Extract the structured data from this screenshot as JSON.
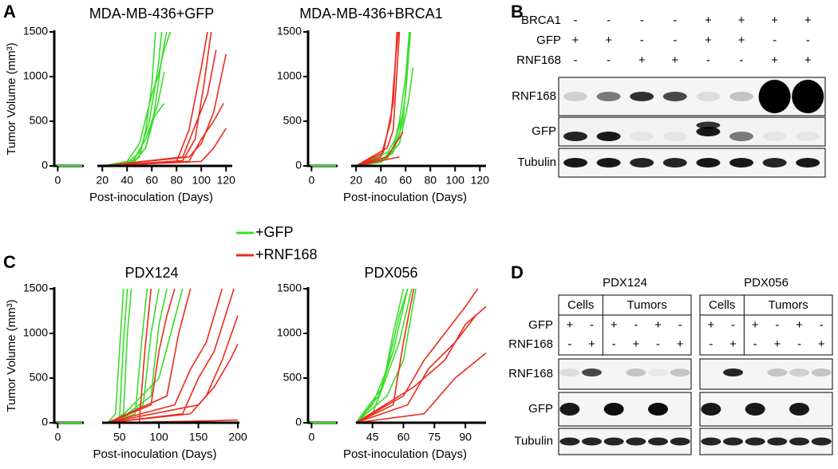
{
  "panel_labels": [
    "A",
    "B",
    "C",
    "D"
  ],
  "legend": [
    {
      "name": "+GFP",
      "color": "#3bdc2a"
    },
    {
      "name": "+RNF168",
      "color": "#ec2a1c"
    }
  ],
  "chart_data": [
    {
      "type": "line",
      "title": "MDA-MB-436+GFP",
      "xlabel": "Post-inoculation (Days)",
      "ylabel": "Tumor Volume (mm³)",
      "xlim": [
        -2,
        125
      ],
      "xbreak": [
        15,
        16
      ],
      "xticks": [
        0,
        20,
        40,
        60,
        80,
        100,
        120
      ],
      "ylim": [
        0,
        1500
      ],
      "yticks": [
        0,
        500,
        1000,
        1500
      ],
      "series": [
        {
          "color": "#3bdc2a",
          "x": [
            20,
            40,
            50,
            55,
            60,
            63
          ],
          "values": [
            0,
            20,
            100,
            400,
            900,
            1500
          ]
        },
        {
          "color": "#3bdc2a",
          "x": [
            20,
            40,
            50,
            58,
            65,
            68
          ],
          "values": [
            0,
            30,
            150,
            500,
            1100,
            1500
          ]
        },
        {
          "color": "#3bdc2a",
          "x": [
            20,
            45,
            55,
            62,
            68,
            72
          ],
          "values": [
            0,
            40,
            200,
            600,
            1200,
            1500
          ]
        },
        {
          "color": "#3bdc2a",
          "x": [
            20,
            40,
            50,
            60,
            65,
            70,
            75
          ],
          "values": [
            0,
            50,
            250,
            800,
            1000,
            1300,
            1500
          ]
        },
        {
          "color": "#3bdc2a",
          "x": [
            20,
            45,
            55,
            65,
            70
          ],
          "values": [
            0,
            60,
            300,
            700,
            1050
          ]
        },
        {
          "color": "#3bdc2a",
          "x": [
            20,
            45,
            55,
            62,
            70
          ],
          "values": [
            0,
            30,
            200,
            550,
            700
          ]
        },
        {
          "color": "#ec2a1c",
          "x": [
            20,
            80,
            90,
            100,
            105
          ],
          "values": [
            0,
            50,
            400,
            1100,
            1500
          ]
        },
        {
          "color": "#ec2a1c",
          "x": [
            20,
            85,
            95,
            102,
            108
          ],
          "values": [
            0,
            60,
            300,
            900,
            1500
          ]
        },
        {
          "color": "#ec2a1c",
          "x": [
            20,
            85,
            95,
            105,
            112
          ],
          "values": [
            0,
            100,
            450,
            800,
            1300
          ]
        },
        {
          "color": "#ec2a1c",
          "x": [
            20,
            90,
            100,
            110,
            120
          ],
          "values": [
            0,
            100,
            250,
            600,
            1250
          ]
        },
        {
          "color": "#ec2a1c",
          "x": [
            20,
            90,
            100,
            110,
            118
          ],
          "values": [
            0,
            50,
            300,
            500,
            700
          ]
        },
        {
          "color": "#ec2a1c",
          "x": [
            20,
            100,
            110,
            120
          ],
          "values": [
            0,
            50,
            200,
            420
          ]
        }
      ]
    },
    {
      "type": "line",
      "title": "MDA-MB-436+BRCA1",
      "xlabel": "Post-inoculation (Days)",
      "xlim": [
        -2,
        125
      ],
      "xbreak": [
        15,
        16
      ],
      "xticks": [
        0,
        20,
        40,
        60,
        80,
        100,
        120
      ],
      "ylim": [
        0,
        1500
      ],
      "yticks": [
        0,
        500,
        1000,
        1500
      ],
      "series": [
        {
          "color": "#3bdc2a",
          "x": [
            20,
            40,
            50,
            55,
            60,
            63
          ],
          "values": [
            0,
            50,
            200,
            500,
            1000,
            1500
          ]
        },
        {
          "color": "#3bdc2a",
          "x": [
            20,
            45,
            55,
            60,
            64
          ],
          "values": [
            0,
            80,
            350,
            800,
            1500
          ]
        },
        {
          "color": "#3bdc2a",
          "x": [
            20,
            45,
            55,
            62,
            66
          ],
          "values": [
            0,
            100,
            250,
            700,
            1100
          ]
        },
        {
          "color": "#3bdc2a",
          "x": [
            20,
            40,
            50,
            58,
            62
          ],
          "values": [
            0,
            40,
            150,
            500,
            1200
          ]
        },
        {
          "color": "#3bdc2a",
          "x": [
            20,
            45,
            52,
            58
          ],
          "values": [
            0,
            150,
            300,
            600
          ]
        },
        {
          "color": "#ec2a1c",
          "x": [
            20,
            40,
            48,
            52,
            54
          ],
          "values": [
            0,
            100,
            500,
            1200,
            1500
          ]
        },
        {
          "color": "#ec2a1c",
          "x": [
            20,
            42,
            50,
            53
          ],
          "values": [
            0,
            150,
            700,
            1500
          ]
        },
        {
          "color": "#ec2a1c",
          "x": [
            20,
            45,
            50,
            55
          ],
          "values": [
            0,
            200,
            400,
            1500
          ]
        },
        {
          "color": "#ec2a1c",
          "x": [
            20,
            45,
            52,
            58
          ],
          "values": [
            0,
            100,
            250,
            380
          ]
        },
        {
          "color": "#ec2a1c",
          "x": [
            20,
            48,
            55
          ],
          "values": [
            0,
            80,
            100
          ]
        }
      ]
    },
    {
      "type": "line",
      "title": "PDX124",
      "xlabel": "Post-inoculation (Days)",
      "ylabel": "Tumor Volume (mm³)",
      "xlim": [
        -2,
        202
      ],
      "xbreak": [
        15,
        28
      ],
      "xticks": [
        0,
        50,
        100,
        150,
        200
      ],
      "ylim": [
        0,
        1500
      ],
      "yticks": [
        0,
        500,
        1000,
        1500
      ],
      "series": [
        {
          "color": "#3bdc2a",
          "x": [
            35,
            45,
            50,
            55
          ],
          "values": [
            0,
            100,
            800,
            1500
          ]
        },
        {
          "color": "#3bdc2a",
          "x": [
            35,
            50,
            55,
            60
          ],
          "values": [
            0,
            50,
            900,
            1500
          ]
        },
        {
          "color": "#3bdc2a",
          "x": [
            40,
            55,
            60,
            65
          ],
          "values": [
            0,
            100,
            1000,
            1500
          ]
        },
        {
          "color": "#3bdc2a",
          "x": [
            40,
            70,
            78,
            85
          ],
          "values": [
            0,
            100,
            900,
            1500
          ]
        },
        {
          "color": "#3bdc2a",
          "x": [
            45,
            80,
            90,
            100
          ],
          "values": [
            0,
            200,
            1000,
            1500
          ]
        },
        {
          "color": "#3bdc2a",
          "x": [
            45,
            90,
            100,
            110
          ],
          "values": [
            0,
            300,
            1100,
            1500
          ]
        },
        {
          "color": "#3bdc2a",
          "x": [
            45,
            100,
            115,
            130
          ],
          "values": [
            0,
            500,
            1000,
            1500
          ]
        },
        {
          "color": "#ec2a1c",
          "x": [
            35,
            75,
            82,
            90
          ],
          "values": [
            0,
            0,
            800,
            1500
          ]
        },
        {
          "color": "#ec2a1c",
          "x": [
            35,
            90,
            100,
            110,
            120
          ],
          "values": [
            0,
            200,
            800,
            1200,
            1500
          ]
        },
        {
          "color": "#ec2a1c",
          "x": [
            35,
            110,
            125,
            140
          ],
          "values": [
            0,
            300,
            1000,
            1500
          ]
        },
        {
          "color": "#ec2a1c",
          "x": [
            35,
            120,
            140,
            160,
            180
          ],
          "values": [
            0,
            200,
            600,
            900,
            1500
          ]
        },
        {
          "color": "#ec2a1c",
          "x": [
            35,
            130,
            150,
            170,
            195
          ],
          "values": [
            0,
            100,
            500,
            800,
            1500
          ]
        },
        {
          "color": "#ec2a1c",
          "x": [
            35,
            140,
            160,
            180,
            200
          ],
          "values": [
            0,
            100,
            300,
            700,
            1200
          ]
        },
        {
          "color": "#ec2a1c",
          "x": [
            35,
            150,
            170,
            190,
            200
          ],
          "values": [
            0,
            200,
            400,
            700,
            880
          ]
        },
        {
          "color": "#ec2a1c",
          "x": [
            35,
            160,
            200
          ],
          "values": [
            0,
            20,
            30
          ]
        }
      ]
    },
    {
      "type": "line",
      "title": "PDX056",
      "xlabel": "Post-inoculation (Days)",
      "xlim": [
        -2,
        100
      ],
      "xbreak": [
        15,
        37
      ],
      "xticks": [
        0,
        45,
        60,
        75,
        90
      ],
      "ylim": [
        0,
        1500
      ],
      "yticks": [
        0,
        500,
        1000,
        1500
      ],
      "series": [
        {
          "color": "#3bdc2a",
          "x": [
            37,
            45,
            50,
            55,
            60
          ],
          "values": [
            0,
            100,
            400,
            1000,
            1500
          ]
        },
        {
          "color": "#3bdc2a",
          "x": [
            37,
            45,
            52,
            58,
            62
          ],
          "values": [
            0,
            200,
            600,
            1200,
            1500
          ]
        },
        {
          "color": "#3bdc2a",
          "x": [
            37,
            48,
            55,
            62
          ],
          "values": [
            0,
            300,
            800,
            1500
          ]
        },
        {
          "color": "#3bdc2a",
          "x": [
            37,
            50,
            58,
            64
          ],
          "values": [
            0,
            400,
            900,
            1500
          ]
        },
        {
          "color": "#3bdc2a",
          "x": [
            37,
            52,
            60,
            66
          ],
          "values": [
            0,
            300,
            700,
            1500
          ]
        },
        {
          "color": "#ec2a1c",
          "x": [
            37,
            55,
            60,
            65
          ],
          "values": [
            0,
            200,
            900,
            1500
          ]
        },
        {
          "color": "#ec2a1c",
          "x": [
            37,
            60,
            70,
            80,
            90,
            96
          ],
          "values": [
            0,
            300,
            700,
            1000,
            1300,
            1500
          ]
        },
        {
          "color": "#ec2a1c",
          "x": [
            37,
            62,
            72,
            85,
            95
          ],
          "values": [
            0,
            200,
            600,
            900,
            1200
          ]
        },
        {
          "color": "#ec2a1c",
          "x": [
            37,
            65,
            80,
            90,
            100
          ],
          "values": [
            0,
            400,
            700,
            1100,
            1300
          ]
        },
        {
          "color": "#ec2a1c",
          "x": [
            37,
            70,
            85,
            100
          ],
          "values": [
            0,
            100,
            500,
            780
          ]
        }
      ]
    }
  ],
  "blot_B": {
    "rows": [
      {
        "label": "BRCA1",
        "signs": [
          "-",
          "-",
          "-",
          "-",
          "+",
          "+",
          "+",
          "+"
        ]
      },
      {
        "label": "GFP",
        "signs": [
          "+",
          "+",
          "-",
          "-",
          "+",
          "+",
          "-",
          "-"
        ]
      },
      {
        "label": "RNF168",
        "signs": [
          "-",
          "-",
          "+",
          "+",
          "-",
          "-",
          "+",
          "+"
        ]
      }
    ],
    "bands": [
      "RNF168",
      "GFP",
      "Tubulin"
    ]
  },
  "blot_D": {
    "row_labels": [
      "GFP",
      "RNF168"
    ],
    "bands": [
      "RNF168",
      "GFP",
      "Tubulin"
    ],
    "groups": [
      {
        "title": "PDX124",
        "headers": [
          "Cells",
          "Tumors"
        ],
        "signs": [
          [
            "+",
            "-",
            "+",
            "-",
            "+",
            "-"
          ],
          [
            "-",
            "+",
            "-",
            "+",
            "-",
            "+"
          ]
        ]
      },
      {
        "title": "PDX056",
        "headers": [
          "Cells",
          "Tumors"
        ],
        "signs": [
          [
            "+",
            "-",
            "+",
            "-",
            "+",
            "-"
          ],
          [
            "-",
            "+",
            "-",
            "+",
            "-",
            "+"
          ]
        ]
      }
    ]
  }
}
